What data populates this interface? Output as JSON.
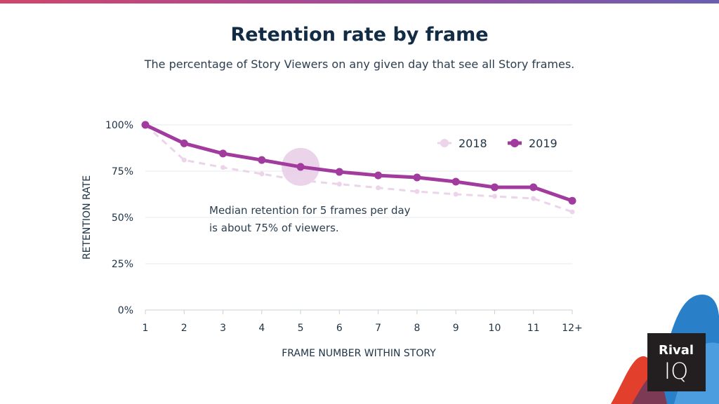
{
  "title": "Retention rate by frame",
  "subtitle": "The percentage of Story Viewers on any given day that see all Story frames.",
  "annotation": [
    "Median retention for 5 frames per day",
    "is about 75% of viewers."
  ],
  "logo_text": "Rival IQ",
  "colors": {
    "2019": "#a23b9e",
    "2018": "#ecd4ea",
    "highlight": "#e6c9e4"
  },
  "chart_data": {
    "type": "line",
    "xlabel": "FRAME NUMBER WITHIN STORY",
    "ylabel": "RETENTION RATE",
    "categories": [
      "1",
      "2",
      "3",
      "4",
      "5",
      "6",
      "7",
      "8",
      "9",
      "10",
      "11",
      "12+"
    ],
    "ylim": [
      0,
      100
    ],
    "yticks": [
      "0%",
      "25%",
      "50%",
      "75%",
      "100%"
    ],
    "grid": true,
    "legend": "top-right",
    "highlight_category": "5",
    "series": [
      {
        "name": "2018",
        "style": "dashed",
        "values": [
          100,
          81,
          77,
          73.5,
          70,
          68,
          66,
          64,
          62.5,
          61.4,
          60.2,
          53
        ]
      },
      {
        "name": "2019",
        "style": "solid",
        "values": [
          100,
          90,
          84.5,
          81,
          77.3,
          74.6,
          72.7,
          71.6,
          69.3,
          66.3,
          66.3,
          59
        ]
      }
    ]
  }
}
